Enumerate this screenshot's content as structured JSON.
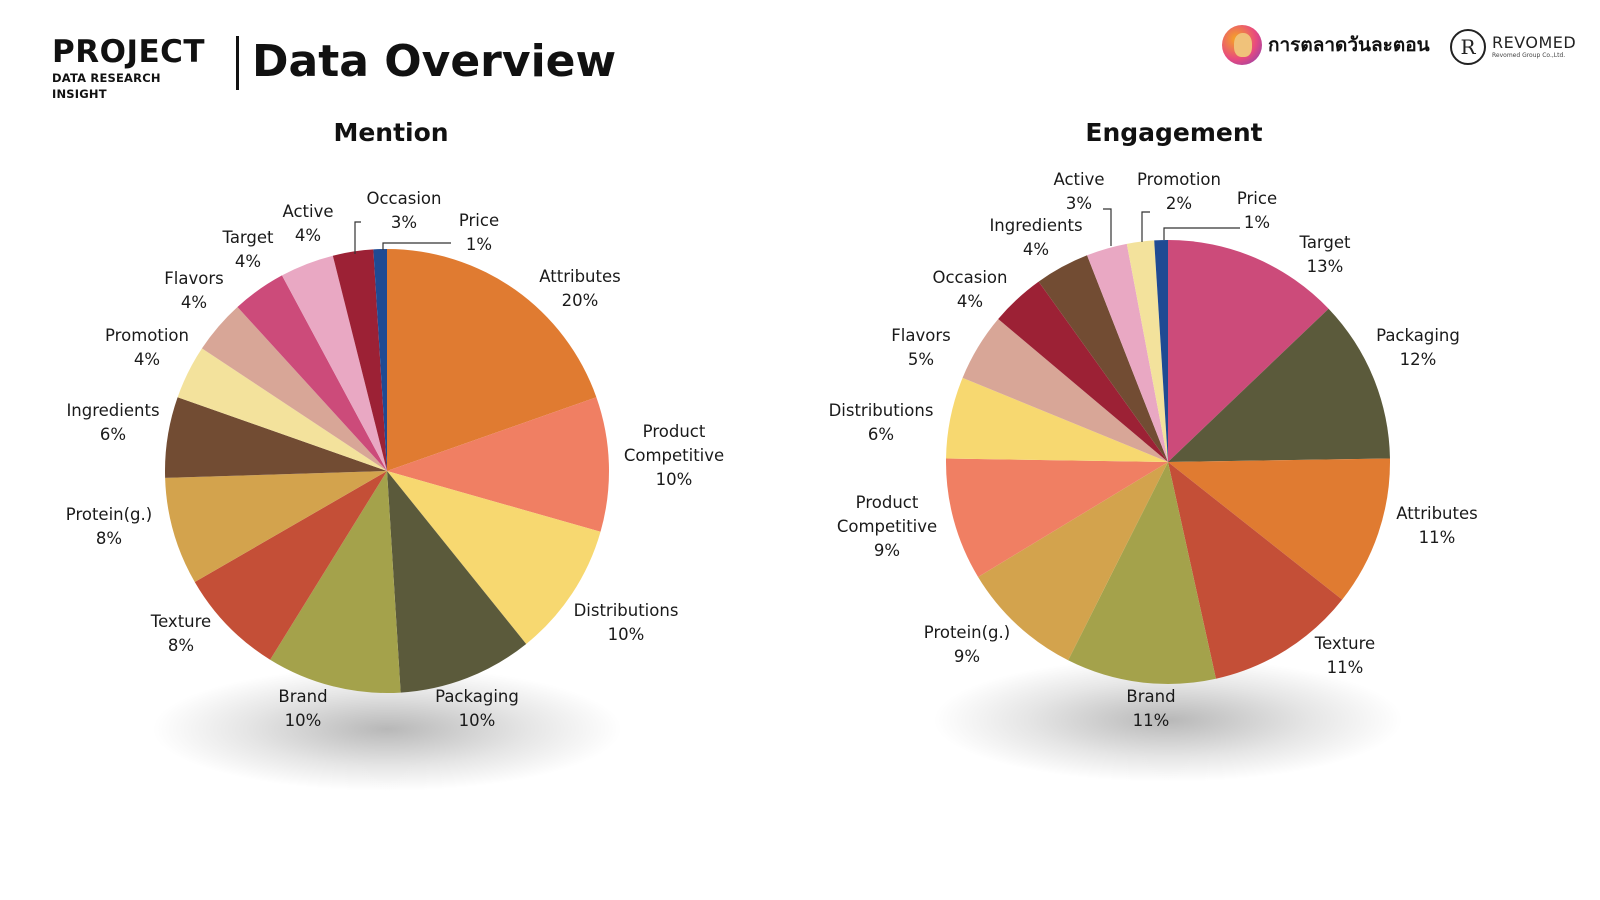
{
  "header": {
    "brand_title": "PROJECT",
    "brand_subtitle": "DATA RESEARCH INSIGHT",
    "page_title": "Data Overview",
    "logo_1_text": "การตลาดวันละตอน",
    "logo_2_mark": "R",
    "logo_2_name": "REVOMED",
    "logo_2_sub": "Revomed Group Co.,Ltd."
  },
  "chart_data": [
    {
      "type": "pie",
      "title": "Mention",
      "start_angle_deg": 0,
      "direction": "clockwise",
      "slices": [
        {
          "label": [
            "Attributes"
          ],
          "value": 20,
          "display": "20%",
          "color": "#e07b31"
        },
        {
          "label": [
            "Product",
            "Competitive"
          ],
          "value": 10,
          "display": "10%",
          "color": "#f07f63"
        },
        {
          "label": [
            "Distributions"
          ],
          "value": 10,
          "display": "10%",
          "color": "#f7d870"
        },
        {
          "label": [
            "Packaging"
          ],
          "value": 10,
          "display": "10%",
          "color": "#5b5a3b"
        },
        {
          "label": [
            "Brand"
          ],
          "value": 10,
          "display": "10%",
          "color": "#a4a24b"
        },
        {
          "label": [
            "Texture"
          ],
          "value": 8,
          "display": "8%",
          "color": "#c44f37"
        },
        {
          "label": [
            "Protein(g.)"
          ],
          "value": 8,
          "display": "8%",
          "color": "#d3a34d"
        },
        {
          "label": [
            "Ingredients"
          ],
          "value": 6,
          "display": "6%",
          "color": "#724c33"
        },
        {
          "label": [
            "Promotion"
          ],
          "value": 4,
          "display": "4%",
          "color": "#f3e29c"
        },
        {
          "label": [
            "Flavors"
          ],
          "value": 4,
          "display": "4%",
          "color": "#d8a697"
        },
        {
          "label": [
            "Target"
          ],
          "value": 4,
          "display": "4%",
          "color": "#cc4b7a"
        },
        {
          "label": [
            "Active"
          ],
          "value": 4,
          "display": "4%",
          "color": "#e9a8c3"
        },
        {
          "label": [
            "Occasion"
          ],
          "value": 3,
          "display": "3%",
          "color": "#9c2135"
        },
        {
          "label": [
            "Price"
          ],
          "value": 1,
          "display": "1%",
          "color": "#1f4a93"
        }
      ]
    },
    {
      "type": "pie",
      "title": "Engagement",
      "start_angle_deg": 0,
      "direction": "clockwise",
      "slices": [
        {
          "label": [
            "Target"
          ],
          "value": 13,
          "display": "13%",
          "color": "#cc4b7a"
        },
        {
          "label": [
            "Packaging"
          ],
          "value": 12,
          "display": "12%",
          "color": "#5b5a3b"
        },
        {
          "label": [
            "Attributes"
          ],
          "value": 11,
          "display": "11%",
          "color": "#e07b31"
        },
        {
          "label": [
            "Texture"
          ],
          "value": 11,
          "display": "11%",
          "color": "#c44f37"
        },
        {
          "label": [
            "Brand"
          ],
          "value": 11,
          "display": "11%",
          "color": "#a4a24b"
        },
        {
          "label": [
            "Protein(g.)"
          ],
          "value": 9,
          "display": "9%",
          "color": "#d3a34d"
        },
        {
          "label": [
            "Product",
            "Competitive"
          ],
          "value": 9,
          "display": "9%",
          "color": "#f07f63"
        },
        {
          "label": [
            "Distributions"
          ],
          "value": 6,
          "display": "6%",
          "color": "#f7d870"
        },
        {
          "label": [
            "Flavors"
          ],
          "value": 5,
          "display": "5%",
          "color": "#d8a697"
        },
        {
          "label": [
            "Occasion"
          ],
          "value": 4,
          "display": "4%",
          "color": "#9c2135"
        },
        {
          "label": [
            "Ingredients"
          ],
          "value": 4,
          "display": "4%",
          "color": "#724c33"
        },
        {
          "label": [
            "Active"
          ],
          "value": 3,
          "display": "3%",
          "color": "#e9a8c3"
        },
        {
          "label": [
            "Promotion"
          ],
          "value": 2,
          "display": "2%",
          "color": "#f3e29c"
        },
        {
          "label": [
            "Price"
          ],
          "value": 1,
          "display": "1%",
          "color": "#1f4a93"
        }
      ]
    }
  ]
}
